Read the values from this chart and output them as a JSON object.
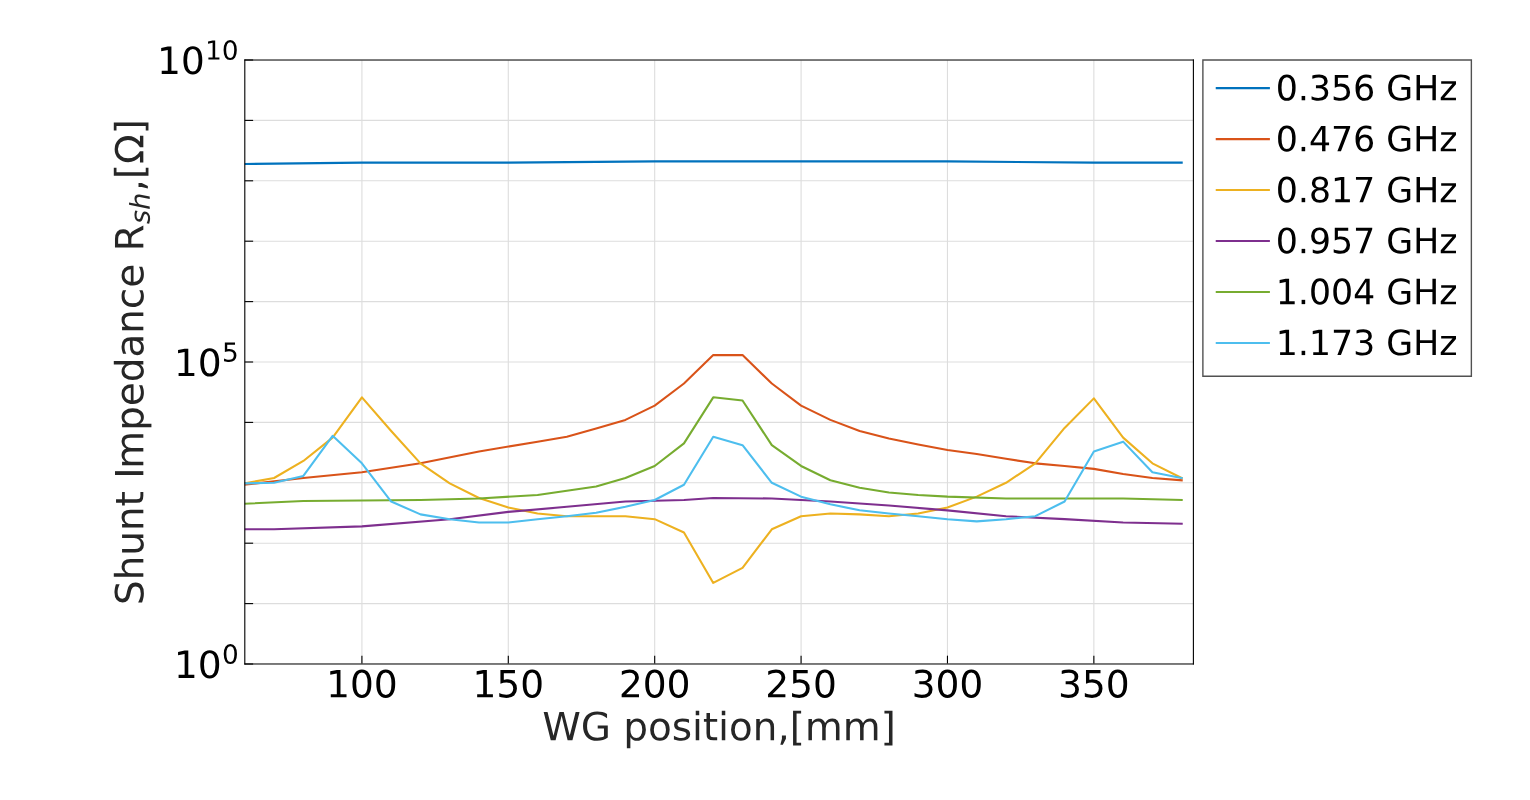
{
  "chart_data": {
    "type": "line",
    "xlabel": "WG position,[mm]",
    "ylabel": "Shunt Impedance R$_{sh}$,[Ω]",
    "xlim": [
      60,
      384
    ],
    "xticks": [
      100,
      150,
      200,
      250,
      300,
      350
    ],
    "ylim": [
      1,
      10000000000
    ],
    "yticks": [
      {
        "value": 1,
        "label": "10$^{0}$"
      },
      {
        "value": 10,
        "label": null
      },
      {
        "value": 100,
        "label": null
      },
      {
        "value": 1000,
        "label": null
      },
      {
        "value": 10000,
        "label": null
      },
      {
        "value": 100000,
        "label": "10$^{5}$"
      },
      {
        "value": 1000000,
        "label": null
      },
      {
        "value": 10000000,
        "label": null
      },
      {
        "value": 100000000,
        "label": null
      },
      {
        "value": 1000000000,
        "label": null
      },
      {
        "value": 10000000000,
        "label": "10$^{10}$"
      }
    ],
    "log": "y",
    "grid": true,
    "legend": "top right",
    "marker": "none",
    "line_style": "solid",
    "series": [
      {
        "name": "0.356 GHz",
        "color": "#0072bd",
        "x": [
          60,
          100,
          150,
          200,
          250,
          300,
          350,
          380
        ],
        "values": [
          190000000,
          200000000,
          200000000,
          210000000,
          210000000,
          210000000,
          200000000,
          200000000
        ]
      },
      {
        "name": "0.476 GHz",
        "color": "#d95319",
        "x": [
          60,
          80,
          100,
          120,
          140,
          160,
          170,
          180,
          190,
          200,
          210,
          220,
          230,
          240,
          250,
          260,
          270,
          280,
          290,
          300,
          310,
          320,
          330,
          340,
          350,
          360,
          370,
          380
        ],
        "values": [
          930,
          1200,
          1500,
          2100,
          3300,
          4800,
          5800,
          7900,
          11000,
          19000,
          44000,
          130000,
          130000,
          44000,
          19000,
          11000,
          7200,
          5400,
          4300,
          3500,
          3000,
          2500,
          2100,
          1900,
          1700,
          1400,
          1200,
          1100
        ]
      },
      {
        "name": "0.817 GHz",
        "color": "#edb120",
        "x": [
          60,
          70,
          80,
          90,
          100,
          110,
          120,
          130,
          140,
          150,
          160,
          170,
          180,
          190,
          200,
          210,
          220,
          230,
          240,
          250,
          260,
          270,
          280,
          290,
          300,
          310,
          320,
          330,
          340,
          350,
          360,
          370,
          380
        ],
        "values": [
          980,
          1200,
          2300,
          5600,
          26000,
          7200,
          2100,
          980,
          560,
          390,
          310,
          280,
          280,
          280,
          250,
          150,
          22,
          39,
          170,
          280,
          310,
          300,
          280,
          310,
          390,
          590,
          1000,
          2100,
          8100,
          25000,
          5600,
          2100,
          1200
        ]
      },
      {
        "name": "0.957 GHz",
        "color": "#7e2f8e",
        "x": [
          60,
          70,
          100,
          130,
          150,
          170,
          190,
          210,
          220,
          240,
          260,
          280,
          300,
          320,
          340,
          360,
          380
        ],
        "values": [
          170,
          170,
          190,
          250,
          330,
          400,
          490,
          520,
          560,
          550,
          490,
          420,
          350,
          280,
          250,
          220,
          210
        ]
      },
      {
        "name": "1.004 GHz",
        "color": "#77ac30",
        "x": [
          60,
          80,
          120,
          140,
          160,
          170,
          180,
          190,
          200,
          210,
          220,
          230,
          240,
          250,
          260,
          270,
          280,
          290,
          300,
          320,
          360,
          380
        ],
        "values": [
          450,
          500,
          520,
          550,
          630,
          740,
          870,
          1200,
          1900,
          4500,
          26000,
          23000,
          4200,
          1900,
          1100,
          830,
          690,
          630,
          590,
          550,
          550,
          520
        ]
      },
      {
        "name": "1.173 GHz",
        "color": "#4dbeee",
        "x": [
          60,
          70,
          80,
          90,
          100,
          110,
          120,
          130,
          140,
          150,
          160,
          170,
          180,
          190,
          200,
          210,
          220,
          230,
          240,
          250,
          260,
          270,
          280,
          290,
          300,
          310,
          320,
          330,
          340,
          350,
          360,
          370,
          380
        ],
        "values": [
          980,
          1000,
          1300,
          6000,
          2100,
          490,
          300,
          250,
          220,
          220,
          250,
          280,
          320,
          400,
          520,
          930,
          5800,
          4200,
          1000,
          590,
          440,
          350,
          310,
          280,
          250,
          230,
          250,
          280,
          490,
          3300,
          4800,
          1500,
          1200
        ]
      }
    ]
  }
}
